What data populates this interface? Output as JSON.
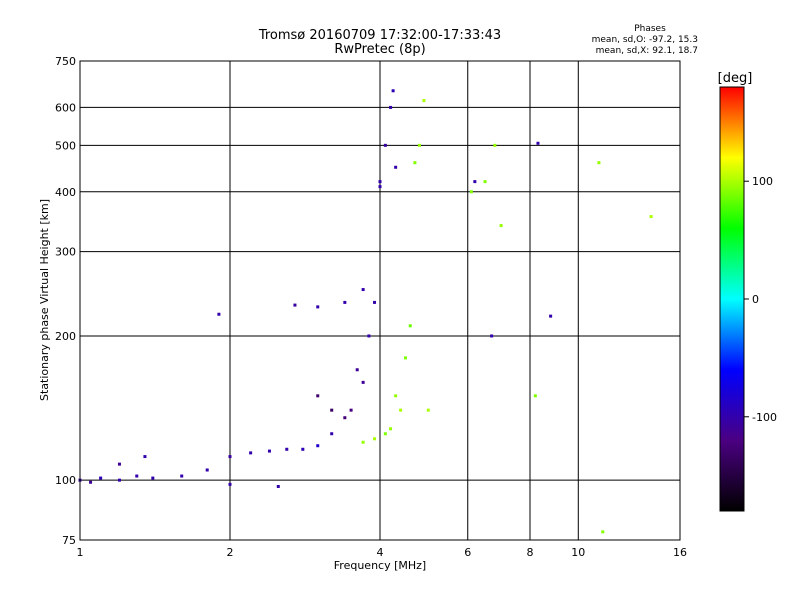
{
  "chart_data": {
    "type": "scatter",
    "title": "Tromsø 20160709 17:32:00-17:33:43",
    "subtitle": "RwPretec (8p)",
    "xlabel": "Frequency [MHz]",
    "ylabel": "Stationary phase Virtual Height [km]",
    "xscale": "log",
    "yscale": "log",
    "xlim": [
      1,
      16
    ],
    "ylim": [
      75,
      750
    ],
    "x_ticks": [
      1,
      2,
      4,
      6,
      8,
      10,
      16
    ],
    "y_ticks": [
      75,
      100,
      200,
      300,
      400,
      500,
      600,
      750
    ],
    "grid": true,
    "phases": {
      "title": "Phases",
      "line_o": "mean, sd,O: -97.2, 15.3",
      "line_x": "mean, sd,X:  92.1, 18.7"
    },
    "colorbar": {
      "label": "[deg]",
      "range": [
        -180,
        180
      ],
      "ticks": [
        100,
        0,
        -100
      ],
      "colors": [
        "#000000",
        "#4b0082",
        "#0000ff",
        "#00ffff",
        "#00ff00",
        "#ffff00",
        "#ff0000"
      ]
    },
    "series": [
      {
        "values": [
          [
            1.0,
            100,
            -100
          ],
          [
            1.05,
            99,
            -110
          ],
          [
            1.1,
            101,
            -95
          ],
          [
            1.2,
            100,
            -100
          ],
          [
            1.3,
            102,
            -100
          ],
          [
            1.4,
            101,
            -98
          ],
          [
            1.6,
            102,
            -100
          ],
          [
            1.8,
            105,
            -100
          ],
          [
            2.0,
            112,
            -105
          ],
          [
            2.2,
            114,
            -100
          ],
          [
            2.4,
            115,
            -100
          ],
          [
            2.6,
            116,
            -100
          ],
          [
            2.8,
            116,
            -95
          ],
          [
            3.0,
            118,
            -85
          ],
          [
            3.2,
            125,
            -100
          ],
          [
            3.5,
            140,
            -120
          ],
          [
            3.7,
            160,
            -110
          ],
          [
            3.8,
            200,
            -100
          ],
          [
            3.9,
            235,
            -100
          ],
          [
            3.7,
            250,
            -100
          ],
          [
            3.4,
            235,
            -100
          ],
          [
            3.0,
            230,
            -100
          ],
          [
            2.7,
            232,
            -105
          ],
          [
            4.0,
            420,
            -100
          ],
          [
            4.1,
            500,
            -105
          ],
          [
            4.2,
            600,
            -100
          ],
          [
            4.25,
            650,
            -95
          ],
          [
            1.2,
            108,
            -110
          ],
          [
            1.35,
            112,
            -100
          ],
          [
            2.0,
            98,
            -100
          ],
          [
            2.5,
            97,
            -100
          ],
          [
            1.9,
            222,
            -100
          ],
          [
            3.0,
            150,
            -130
          ],
          [
            3.2,
            140,
            -135
          ],
          [
            3.4,
            135,
            -125
          ],
          [
            3.6,
            170,
            -110
          ],
          [
            4.0,
            410,
            -100
          ],
          [
            4.3,
            450,
            -100
          ],
          [
            6.2,
            420,
            -100
          ],
          [
            6.7,
            200,
            -100
          ],
          [
            8.3,
            505,
            -100
          ],
          [
            8.8,
            220,
            -100
          ]
        ]
      },
      {
        "values": [
          [
            3.7,
            120,
            95
          ],
          [
            3.9,
            122,
            100
          ],
          [
            4.1,
            125,
            90
          ],
          [
            4.3,
            150,
            95
          ],
          [
            4.5,
            180,
            90
          ],
          [
            4.6,
            210,
            85
          ],
          [
            4.4,
            140,
            100
          ],
          [
            4.2,
            128,
            95
          ],
          [
            4.7,
            460,
            90
          ],
          [
            4.8,
            500,
            95
          ],
          [
            4.9,
            620,
            100
          ],
          [
            6.5,
            420,
            90
          ],
          [
            7.0,
            340,
            95
          ],
          [
            6.1,
            400,
            90
          ],
          [
            8.2,
            150,
            90
          ],
          [
            11.0,
            460,
            95
          ],
          [
            14.0,
            355,
            100
          ],
          [
            6.8,
            500,
            95
          ],
          [
            11.2,
            78,
            90
          ],
          [
            5.0,
            140,
            100
          ]
        ]
      }
    ]
  }
}
